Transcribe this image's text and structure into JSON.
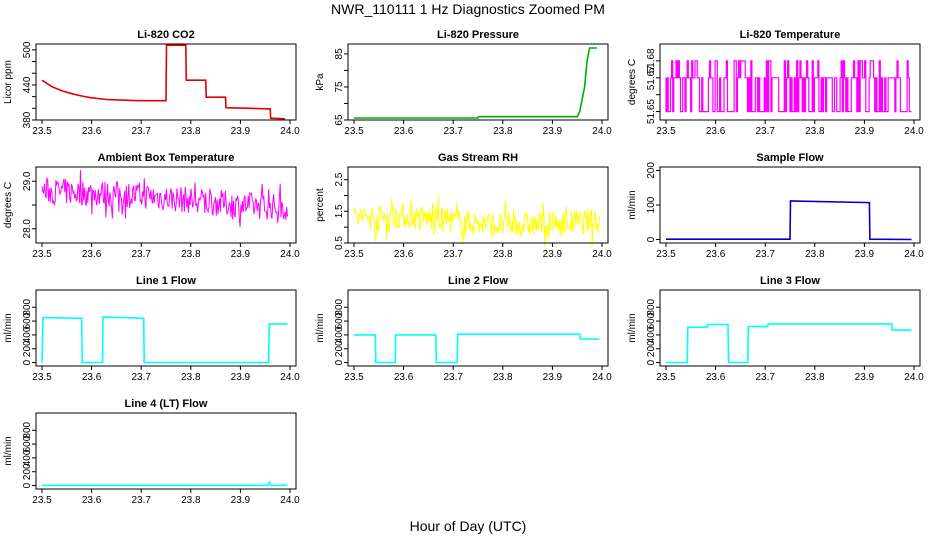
{
  "figure": {
    "title": "NWR_110111  1 Hz Diagnostics Zoomed PM",
    "xlabel": "Hour of Day (UTC)"
  },
  "chart_data": [
    {
      "type": "line",
      "title": "Li-820 CO2",
      "ylabel": "Licor ppm",
      "color": "#e00000",
      "xlim": [
        23.5,
        24.0
      ],
      "ylim": [
        380,
        510
      ],
      "yticks": [
        380,
        400,
        420,
        440,
        460,
        480,
        500
      ],
      "ytick_labels": [
        "380",
        "",
        "",
        "440",
        "",
        "",
        "500"
      ],
      "x": [
        23.5,
        23.52,
        23.54,
        23.56,
        23.58,
        23.6,
        23.63,
        23.66,
        23.7,
        23.75,
        23.751,
        23.79,
        23.791,
        23.83,
        23.831,
        23.87,
        23.871,
        23.96,
        23.961,
        23.99
      ],
      "y": [
        448,
        437,
        430,
        425,
        421,
        418,
        415,
        414,
        413,
        413,
        508,
        508,
        448,
        448,
        419,
        419,
        401,
        399,
        383,
        382
      ]
    },
    {
      "type": "line",
      "title": "Li-820 Pressure",
      "ylabel": "kPa",
      "color": "#00b000",
      "xlim": [
        23.5,
        24.0
      ],
      "ylim": [
        65,
        88
      ],
      "yticks": [
        65,
        70,
        75,
        80,
        85
      ],
      "ytick_labels": [
        "65",
        "",
        "75",
        "",
        "85"
      ],
      "x": [
        23.5,
        23.75,
        23.751,
        23.95,
        23.955,
        23.965,
        23.97,
        23.975,
        23.99
      ],
      "y": [
        65.6,
        65.6,
        66.0,
        66.0,
        67.5,
        75,
        83,
        86.8,
        86.8
      ]
    },
    {
      "type": "line",
      "title": "Li-820 Temperature",
      "ylabel": "degrees C",
      "color": "#ff00ff",
      "xlim": [
        23.5,
        24.0
      ],
      "ylim": [
        51.645,
        51.69
      ],
      "yticks": [
        51.65,
        51.66,
        51.67,
        51.68
      ],
      "ytick_labels": [
        "51.65",
        "",
        "51.67",
        "51.68"
      ],
      "levels": [
        51.65,
        51.67,
        51.68
      ],
      "x_range": [
        23.5,
        23.995
      ]
    },
    {
      "type": "line",
      "title": "Ambient Box Temperature",
      "ylabel": "degrees C",
      "color": "#ff00ff",
      "xlim": [
        23.5,
        24.0
      ],
      "ylim": [
        27.7,
        29.3
      ],
      "yticks": [
        28.0,
        28.5,
        29.0
      ],
      "ytick_labels": [
        "28.0",
        "",
        "29.0"
      ],
      "x": [
        23.5,
        23.6,
        23.7,
        23.8,
        23.9,
        23.995
      ],
      "y": [
        28.8,
        28.75,
        28.7,
        28.6,
        28.5,
        28.45
      ],
      "noise": 0.35
    },
    {
      "type": "line",
      "title": "Gas Stream RH",
      "ylabel": "percent",
      "color": "#ffff00",
      "xlim": [
        23.5,
        24.0
      ],
      "ylim": [
        0.5,
        2.9
      ],
      "yticks": [
        0.5,
        1.0,
        1.5,
        2.0,
        2.5
      ],
      "ytick_labels": [
        "0.5",
        "",
        "1.5",
        "",
        "2.5"
      ],
      "x": [
        23.5,
        23.6,
        23.7,
        23.8,
        23.9,
        23.995
      ],
      "y": [
        1.3,
        1.35,
        1.2,
        1.05,
        1.1,
        1.2
      ],
      "noise": 0.5
    },
    {
      "type": "line",
      "title": "Sample Flow",
      "ylabel": "ml/min",
      "color": "#0000cc",
      "xlim": [
        23.5,
        24.0
      ],
      "ylim": [
        -10,
        210
      ],
      "yticks": [
        0,
        100,
        200
      ],
      "ytick_labels": [
        "0",
        "100",
        "200"
      ],
      "x": [
        23.5,
        23.75,
        23.751,
        23.91,
        23.911,
        23.995
      ],
      "y": [
        1,
        1,
        112,
        107,
        1,
        0
      ]
    },
    {
      "type": "line",
      "title": "Line 1 Flow",
      "ylabel": "ml/min",
      "color": "#00ffff",
      "xlim": [
        23.5,
        24.0
      ],
      "ylim": [
        -50,
        1050
      ],
      "yticks": [
        0,
        200,
        400,
        600,
        800
      ],
      "ytick_labels": [
        "0",
        "200",
        "400",
        "600",
        "800"
      ],
      "x": [
        23.5,
        23.502,
        23.58,
        23.581,
        23.622,
        23.623,
        23.705,
        23.706,
        23.957,
        23.958,
        23.995
      ],
      "y": [
        0,
        650,
        640,
        0,
        0,
        660,
        640,
        0,
        0,
        560,
        560
      ]
    },
    {
      "type": "line",
      "title": "Line 2 Flow",
      "ylabel": "ml/min",
      "color": "#00ffff",
      "xlim": [
        23.5,
        24.0
      ],
      "ylim": [
        -50,
        1050
      ],
      "yticks": [
        0,
        200,
        400,
        600,
        800
      ],
      "ytick_labels": [
        "0",
        "200",
        "400",
        "600",
        "800"
      ],
      "x": [
        23.5,
        23.543,
        23.544,
        23.583,
        23.584,
        23.665,
        23.666,
        23.708,
        23.709,
        23.955,
        23.956,
        23.995
      ],
      "y": [
        400,
        400,
        0,
        0,
        400,
        400,
        0,
        0,
        410,
        410,
        340,
        340
      ]
    },
    {
      "type": "line",
      "title": "Line 3 Flow",
      "ylabel": "ml/min",
      "color": "#00ffff",
      "xlim": [
        23.5,
        24.0
      ],
      "ylim": [
        -50,
        1050
      ],
      "yticks": [
        0,
        200,
        400,
        600,
        800
      ],
      "ytick_labels": [
        "0",
        "200",
        "400",
        "600",
        "800"
      ],
      "x": [
        23.5,
        23.501,
        23.543,
        23.544,
        23.583,
        23.584,
        23.625,
        23.626,
        23.665,
        23.666,
        23.705,
        23.706,
        23.955,
        23.956,
        23.995
      ],
      "y": [
        0,
        0,
        0,
        510,
        510,
        550,
        550,
        0,
        0,
        520,
        520,
        560,
        560,
        470,
        470
      ]
    },
    {
      "type": "line",
      "title": "Line 4 (LT) Flow",
      "ylabel": "ml/min",
      "color": "#00ffff",
      "xlim": [
        23.5,
        24.0
      ],
      "ylim": [
        -50,
        1050
      ],
      "yticks": [
        0,
        200,
        400,
        600,
        800
      ],
      "ytick_labels": [
        "0",
        "200",
        "400",
        "600",
        "800"
      ],
      "x": [
        23.5,
        23.955,
        23.958,
        23.962,
        23.995
      ],
      "y": [
        3,
        3,
        50,
        3,
        3
      ]
    }
  ],
  "shared_axes": {
    "x_ticks": [
      23.5,
      23.6,
      23.7,
      23.8,
      23.9,
      24.0
    ],
    "x_tick_labels": [
      "23.5",
      "23.6",
      "23.7",
      "23.8",
      "23.9",
      "24.0"
    ]
  }
}
